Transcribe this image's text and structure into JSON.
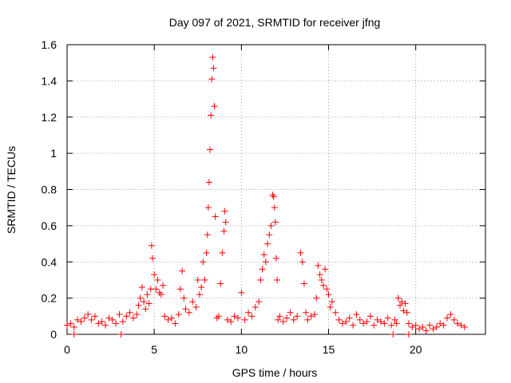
{
  "chart_data": {
    "type": "scatter",
    "title": "Day 097 of 2021, SRMTID for receiver jfng",
    "xlabel": "GPS time / hours",
    "ylabel": "SRMTID / TECUs",
    "xlim": [
      0,
      24
    ],
    "ylim": [
      0,
      1.6
    ],
    "xticks": [
      0,
      5,
      10,
      15,
      20
    ],
    "xtick_labels": [
      "0",
      "5",
      "10",
      "15",
      "20"
    ],
    "yticks": [
      0,
      0.2,
      0.4,
      0.6,
      0.8,
      1.0,
      1.2,
      1.4,
      1.6
    ],
    "ytick_labels": [
      "0",
      "0.2",
      "0.4",
      "0.6",
      "0.8",
      "1",
      "1.2",
      "1.4",
      "1.6"
    ],
    "grid": true,
    "marker": "+",
    "marker_color": "#ff0000",
    "series": [
      {
        "name": "SRMTID",
        "x": [
          0.0,
          0.2,
          0.4,
          0.6,
          0.8,
          1.0,
          1.2,
          1.4,
          1.6,
          1.8,
          2.0,
          2.2,
          2.4,
          2.6,
          2.8,
          3.0,
          3.2,
          3.4,
          3.6,
          3.8,
          4.0,
          4.1,
          4.2,
          4.3,
          4.4,
          4.5,
          4.6,
          4.7,
          4.8,
          4.85,
          4.9,
          5.0,
          5.1,
          5.2,
          5.3,
          5.4,
          5.5,
          5.6,
          5.8,
          6.0,
          6.2,
          6.4,
          6.5,
          6.6,
          6.7,
          6.8,
          7.0,
          7.2,
          7.4,
          7.5,
          7.6,
          7.7,
          7.8,
          7.9,
          8.0,
          8.05,
          8.1,
          8.15,
          8.2,
          8.25,
          8.3,
          8.35,
          8.4,
          8.45,
          8.5,
          8.6,
          8.7,
          8.8,
          8.9,
          9.0,
          9.05,
          9.1,
          9.2,
          9.4,
          9.6,
          9.8,
          10.0,
          10.2,
          10.4,
          10.6,
          10.8,
          11.0,
          11.1,
          11.2,
          11.3,
          11.4,
          11.5,
          11.6,
          11.7,
          11.8,
          11.85,
          11.9,
          11.95,
          12.0,
          12.05,
          12.1,
          12.2,
          12.4,
          12.6,
          12.8,
          13.0,
          13.2,
          13.4,
          13.5,
          13.6,
          13.7,
          13.8,
          14.0,
          14.2,
          14.3,
          14.4,
          14.5,
          14.6,
          14.7,
          14.8,
          14.9,
          15.0,
          15.1,
          15.2,
          15.4,
          15.6,
          15.8,
          16.0,
          16.2,
          16.4,
          16.6,
          16.8,
          17.0,
          17.2,
          17.4,
          17.6,
          17.8,
          18.0,
          18.2,
          18.4,
          18.6,
          18.8,
          18.9,
          19.0,
          19.1,
          19.2,
          19.3,
          19.4,
          19.5,
          19.6,
          19.8,
          20.0,
          20.2,
          20.4,
          20.6,
          20.8,
          21.0,
          21.2,
          21.4,
          21.6,
          21.8,
          22.0,
          22.2,
          22.4,
          22.6,
          22.8
        ],
        "y": [
          0.05,
          0.06,
          0.04,
          0.08,
          0.07,
          0.09,
          0.11,
          0.08,
          0.1,
          0.06,
          0.07,
          0.05,
          0.09,
          0.08,
          0.06,
          0.11,
          0.07,
          0.1,
          0.12,
          0.09,
          0.11,
          0.16,
          0.2,
          0.26,
          0.18,
          0.14,
          0.22,
          0.17,
          0.25,
          0.49,
          0.42,
          0.33,
          0.25,
          0.3,
          0.23,
          0.22,
          0.27,
          0.1,
          0.08,
          0.09,
          0.06,
          0.11,
          0.25,
          0.35,
          0.2,
          0.14,
          0.12,
          0.18,
          0.15,
          0.3,
          0.22,
          0.26,
          0.4,
          0.3,
          0.45,
          0.55,
          0.7,
          0.84,
          1.02,
          1.21,
          1.41,
          1.53,
          1.47,
          1.26,
          0.65,
          0.09,
          0.1,
          0.28,
          0.45,
          0.57,
          0.68,
          0.62,
          0.08,
          0.07,
          0.1,
          0.09,
          0.23,
          0.08,
          0.12,
          0.1,
          0.15,
          0.18,
          0.3,
          0.36,
          0.44,
          0.4,
          0.5,
          0.55,
          0.6,
          0.77,
          0.76,
          0.7,
          0.62,
          0.42,
          0.3,
          0.08,
          0.1,
          0.07,
          0.09,
          0.12,
          0.08,
          0.1,
          0.45,
          0.4,
          0.28,
          0.12,
          0.08,
          0.1,
          0.11,
          0.2,
          0.38,
          0.33,
          0.3,
          0.27,
          0.36,
          0.25,
          0.22,
          0.15,
          0.18,
          0.12,
          0.08,
          0.06,
          0.07,
          0.09,
          0.05,
          0.11,
          0.08,
          0.06,
          0.07,
          0.1,
          0.05,
          0.08,
          0.07,
          0.06,
          0.09,
          0.05,
          0.08,
          0.06,
          0.2,
          0.16,
          0.18,
          0.13,
          0.17,
          0.12,
          0.06,
          0.04,
          0.05,
          0.03,
          0.04,
          0.02,
          0.05,
          0.03,
          0.04,
          0.06,
          0.05,
          0.09,
          0.11,
          0.08,
          0.06,
          0.05,
          0.04
        ],
        "baseline_x": [
          0.4,
          3.1,
          18.7,
          19.6
        ],
        "baseline_y": [
          0.0,
          0.0,
          0.0,
          0.0
        ]
      }
    ]
  }
}
